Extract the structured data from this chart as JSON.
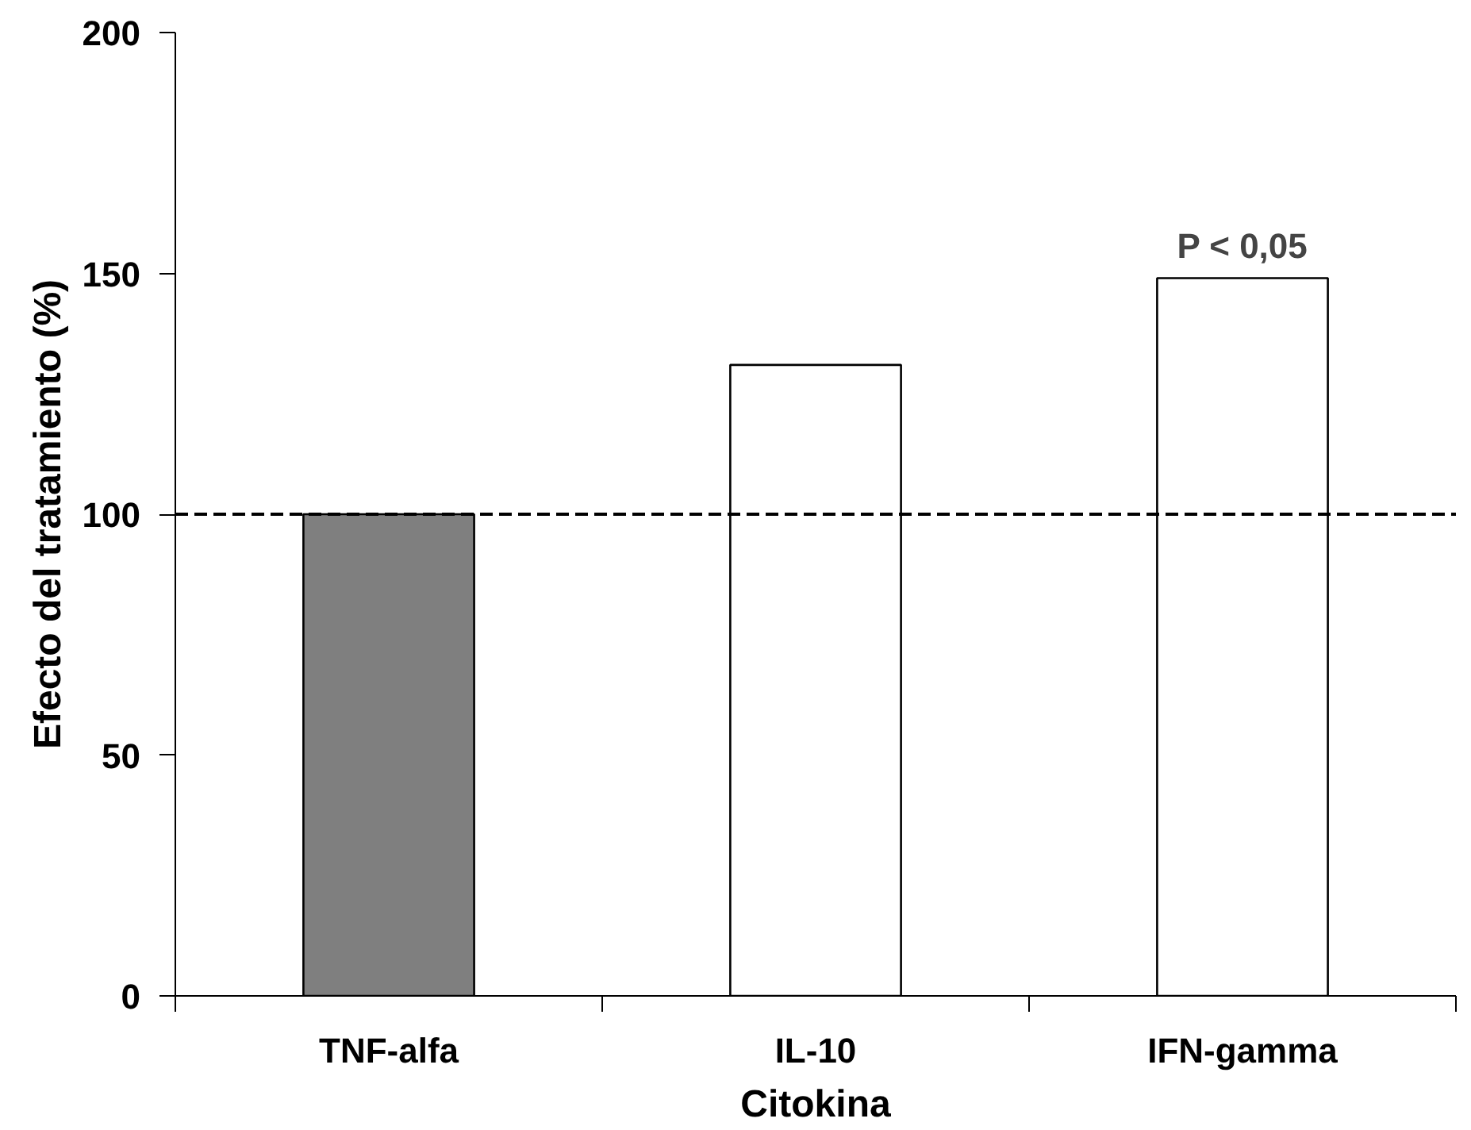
{
  "chart_data": {
    "type": "bar",
    "xlabel": "Citokina",
    "ylabel": "Efecto del tratamiento (%)",
    "categories": [
      "TNF-alfa",
      "IL-10",
      "IFN-gamma"
    ],
    "values": [
      100,
      131,
      149
    ],
    "colors": [
      "#7f7f7f",
      "#ffffff",
      "#ffffff"
    ],
    "ylim": [
      0,
      200
    ],
    "yticks": [
      0,
      50,
      100,
      150,
      200
    ],
    "grid": false,
    "ref_lines": [
      {
        "axis": "y",
        "value": 100,
        "line_style": "dashed",
        "color": "#000000"
      }
    ],
    "annotations": [
      {
        "text": "P < 0,05",
        "x": "IFN-gamma",
        "y": 149
      }
    ]
  }
}
